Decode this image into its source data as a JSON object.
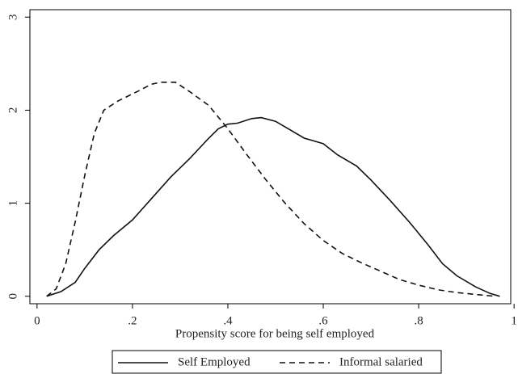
{
  "chart_data": {
    "type": "line",
    "x_label": "Propensity score for being self employed",
    "xlim": [
      -0.015,
      0.993
    ],
    "ylim": [
      -0.08,
      3.08
    ],
    "xticks": [
      0,
      {
        "value": 0.2,
        "label": ".2"
      },
      {
        "value": 0.4,
        "label": ".4"
      },
      {
        "value": 0.6,
        "label": ".6"
      },
      {
        "value": 0.8,
        "label": ".8"
      },
      1
    ],
    "yticks": [
      0,
      1,
      2,
      3
    ],
    "grid": false,
    "legend": "bottom",
    "series": [
      {
        "name": "Self Employed",
        "color": "#111111",
        "dash": "solid",
        "x": [
          0.02,
          0.05,
          0.08,
          0.1,
          0.13,
          0.16,
          0.2,
          0.24,
          0.28,
          0.32,
          0.36,
          0.38,
          0.4,
          0.42,
          0.45,
          0.47,
          0.5,
          0.53,
          0.56,
          0.6,
          0.63,
          0.67,
          0.7,
          0.74,
          0.78,
          0.82,
          0.85,
          0.88,
          0.92,
          0.95,
          0.97
        ],
        "values": [
          0,
          0.05,
          0.15,
          0.3,
          0.5,
          0.65,
          0.82,
          1.05,
          1.28,
          1.48,
          1.7,
          1.8,
          1.85,
          1.86,
          1.91,
          1.92,
          1.88,
          1.79,
          1.7,
          1.64,
          1.52,
          1.4,
          1.25,
          1.03,
          0.8,
          0.55,
          0.35,
          0.22,
          0.1,
          0.03,
          0
        ]
      },
      {
        "name": "Informal salaried",
        "color": "#111111",
        "dash": "dashed",
        "x": [
          0.02,
          0.04,
          0.06,
          0.08,
          0.1,
          0.12,
          0.14,
          0.17,
          0.21,
          0.24,
          0.26,
          0.29,
          0.32,
          0.36,
          0.4,
          0.44,
          0.48,
          0.52,
          0.56,
          0.6,
          0.64,
          0.68,
          0.72,
          0.76,
          0.8,
          0.84,
          0.88,
          0.92,
          0.96
        ],
        "values": [
          0,
          0.08,
          0.35,
          0.8,
          1.3,
          1.75,
          2.0,
          2.1,
          2.2,
          2.28,
          2.3,
          2.3,
          2.2,
          2.05,
          1.8,
          1.52,
          1.25,
          1.0,
          0.78,
          0.6,
          0.46,
          0.36,
          0.27,
          0.18,
          0.12,
          0.07,
          0.04,
          0.02,
          0
        ]
      }
    ]
  }
}
